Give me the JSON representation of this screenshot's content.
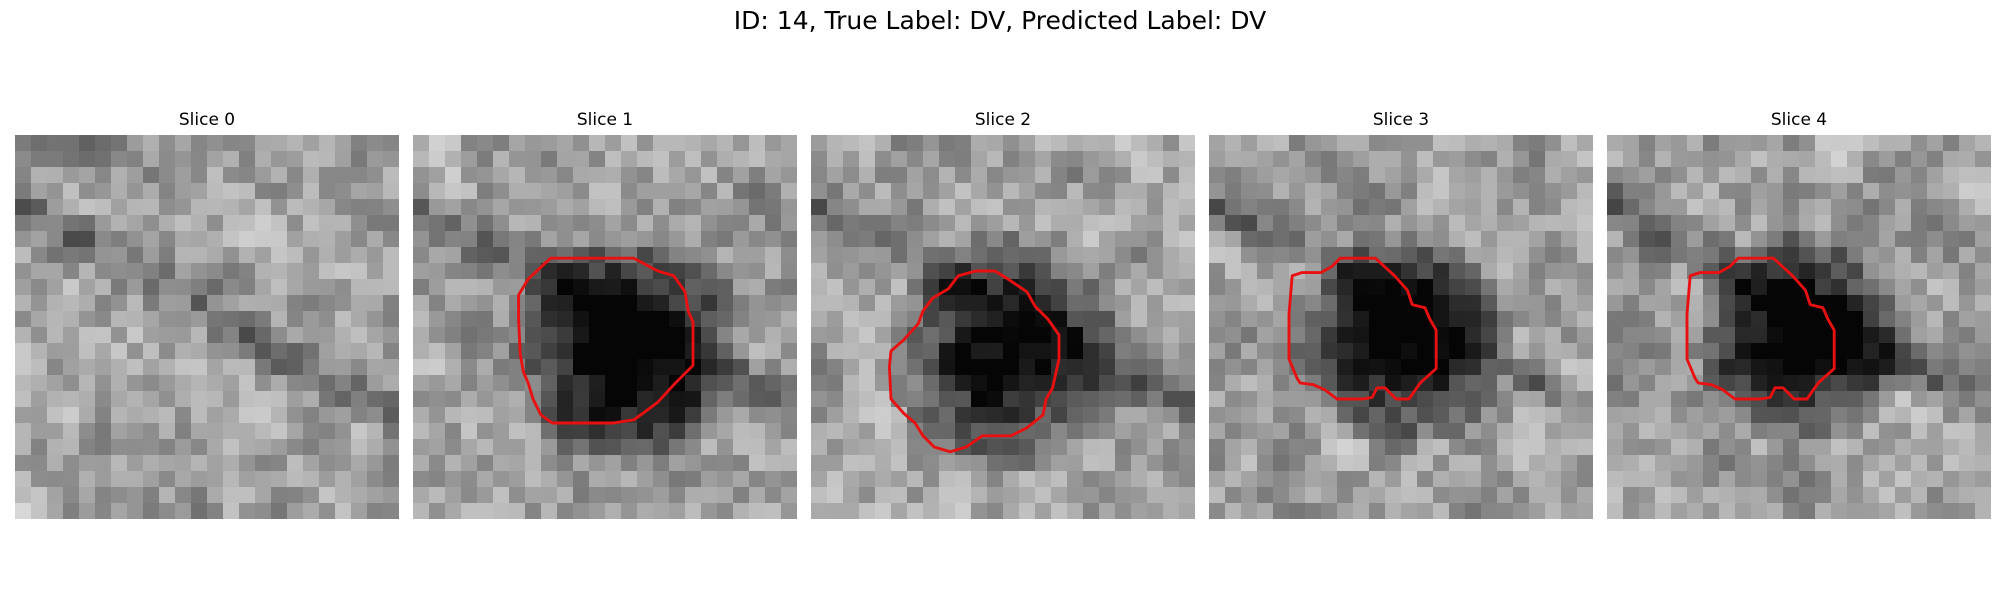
{
  "figure": {
    "title": "ID: 14, True Label: DV, Predicted Label: DV"
  },
  "panels": [
    {
      "title": "Slice 0",
      "has_contour": false,
      "blob": null,
      "contour": []
    },
    {
      "title": "Slice 1",
      "has_contour": true,
      "blob": {
        "cx": 13.5,
        "cy": 13.5,
        "r": 5.6,
        "strength": 0.9
      },
      "contour": [
        [
          7.2,
          9
        ],
        [
          8.6,
          7.7
        ],
        [
          13.8,
          7.7
        ],
        [
          15.3,
          8.5
        ],
        [
          16.3,
          8.8
        ],
        [
          17,
          9.8
        ],
        [
          17.2,
          11
        ],
        [
          17.5,
          11.7
        ],
        [
          17.5,
          14.4
        ],
        [
          16.4,
          15.5
        ],
        [
          15.3,
          16.7
        ],
        [
          14.5,
          17.3
        ],
        [
          13.8,
          17.8
        ],
        [
          12.5,
          18
        ],
        [
          8.7,
          18
        ],
        [
          8,
          17.5
        ],
        [
          7.5,
          16.5
        ],
        [
          7.2,
          15.5
        ],
        [
          6.9,
          14.8
        ],
        [
          6.7,
          13.7
        ],
        [
          6.6,
          11.5
        ],
        [
          6.6,
          10
        ]
      ]
    },
    {
      "title": "Slice 2",
      "has_contour": true,
      "blob": {
        "cx": 12.5,
        "cy": 13.5,
        "r": 5.8,
        "strength": 0.7
      },
      "contour": [
        [
          7.6,
          10.2
        ],
        [
          8.6,
          9.6
        ],
        [
          9.2,
          8.8
        ],
        [
          10.3,
          8.5
        ],
        [
          11.5,
          8.5
        ],
        [
          12.3,
          9
        ],
        [
          13.5,
          9.8
        ],
        [
          14,
          10.7
        ],
        [
          14.8,
          11.5
        ],
        [
          15.5,
          12.5
        ],
        [
          15.5,
          14
        ],
        [
          15.1,
          15.8
        ],
        [
          14.7,
          16.5
        ],
        [
          14.5,
          17.5
        ],
        [
          13.5,
          18.3
        ],
        [
          12.5,
          18.8
        ],
        [
          10.7,
          18.8
        ],
        [
          9.7,
          19.5
        ],
        [
          8.7,
          19.8
        ],
        [
          7.7,
          19.5
        ],
        [
          7,
          18.8
        ],
        [
          6.5,
          18
        ],
        [
          5.8,
          17.4
        ],
        [
          5,
          16.5
        ],
        [
          4.9,
          14.5
        ],
        [
          5,
          13.5
        ],
        [
          5.8,
          12.8
        ],
        [
          6.7,
          11.8
        ],
        [
          7,
          11
        ]
      ]
    },
    {
      "title": "Slice 3",
      "has_contour": true,
      "blob": {
        "cx": 12,
        "cy": 12.8,
        "r": 5.2,
        "strength": 0.8
      },
      "contour": [
        [
          5.2,
          8.8
        ],
        [
          5.8,
          8.6
        ],
        [
          7,
          8.6
        ],
        [
          7.7,
          8.2
        ],
        [
          8.2,
          7.7
        ],
        [
          10.4,
          7.7
        ],
        [
          11.6,
          8.8
        ],
        [
          12.4,
          9.7
        ],
        [
          12.7,
          10.6
        ],
        [
          13.5,
          10.8
        ],
        [
          13.8,
          11.5
        ],
        [
          14.2,
          12.2
        ],
        [
          14.2,
          14.6
        ],
        [
          13.2,
          15.5
        ],
        [
          12.5,
          16.5
        ],
        [
          11.7,
          16.5
        ],
        [
          11,
          15.8
        ],
        [
          10.5,
          15.8
        ],
        [
          10.2,
          16.4
        ],
        [
          9.6,
          16.5
        ],
        [
          8,
          16.5
        ],
        [
          7.2,
          15.9
        ],
        [
          6.5,
          15.6
        ],
        [
          5.7,
          15.5
        ],
        [
          5.5,
          15.2
        ],
        [
          5,
          14
        ],
        [
          5,
          11.2
        ]
      ]
    },
    {
      "title": "Slice 4",
      "has_contour": true,
      "blob": {
        "cx": 12,
        "cy": 12.8,
        "r": 5.2,
        "strength": 0.8
      },
      "contour": [
        [
          5.2,
          8.8
        ],
        [
          5.8,
          8.6
        ],
        [
          7,
          8.6
        ],
        [
          7.7,
          8.2
        ],
        [
          8.2,
          7.7
        ],
        [
          10.4,
          7.7
        ],
        [
          11.6,
          8.8
        ],
        [
          12.4,
          9.7
        ],
        [
          12.7,
          10.6
        ],
        [
          13.5,
          10.8
        ],
        [
          13.8,
          11.5
        ],
        [
          14.2,
          12.2
        ],
        [
          14.2,
          14.6
        ],
        [
          13.2,
          15.5
        ],
        [
          12.5,
          16.5
        ],
        [
          11.7,
          16.5
        ],
        [
          11,
          15.8
        ],
        [
          10.5,
          15.8
        ],
        [
          10.2,
          16.4
        ],
        [
          9.6,
          16.5
        ],
        [
          8,
          16.5
        ],
        [
          7.2,
          15.9
        ],
        [
          6.5,
          15.6
        ],
        [
          5.7,
          15.5
        ],
        [
          5.5,
          15.2
        ],
        [
          5,
          14
        ],
        [
          5,
          11.2
        ]
      ]
    }
  ],
  "colors": {
    "contour": "#e81010"
  }
}
